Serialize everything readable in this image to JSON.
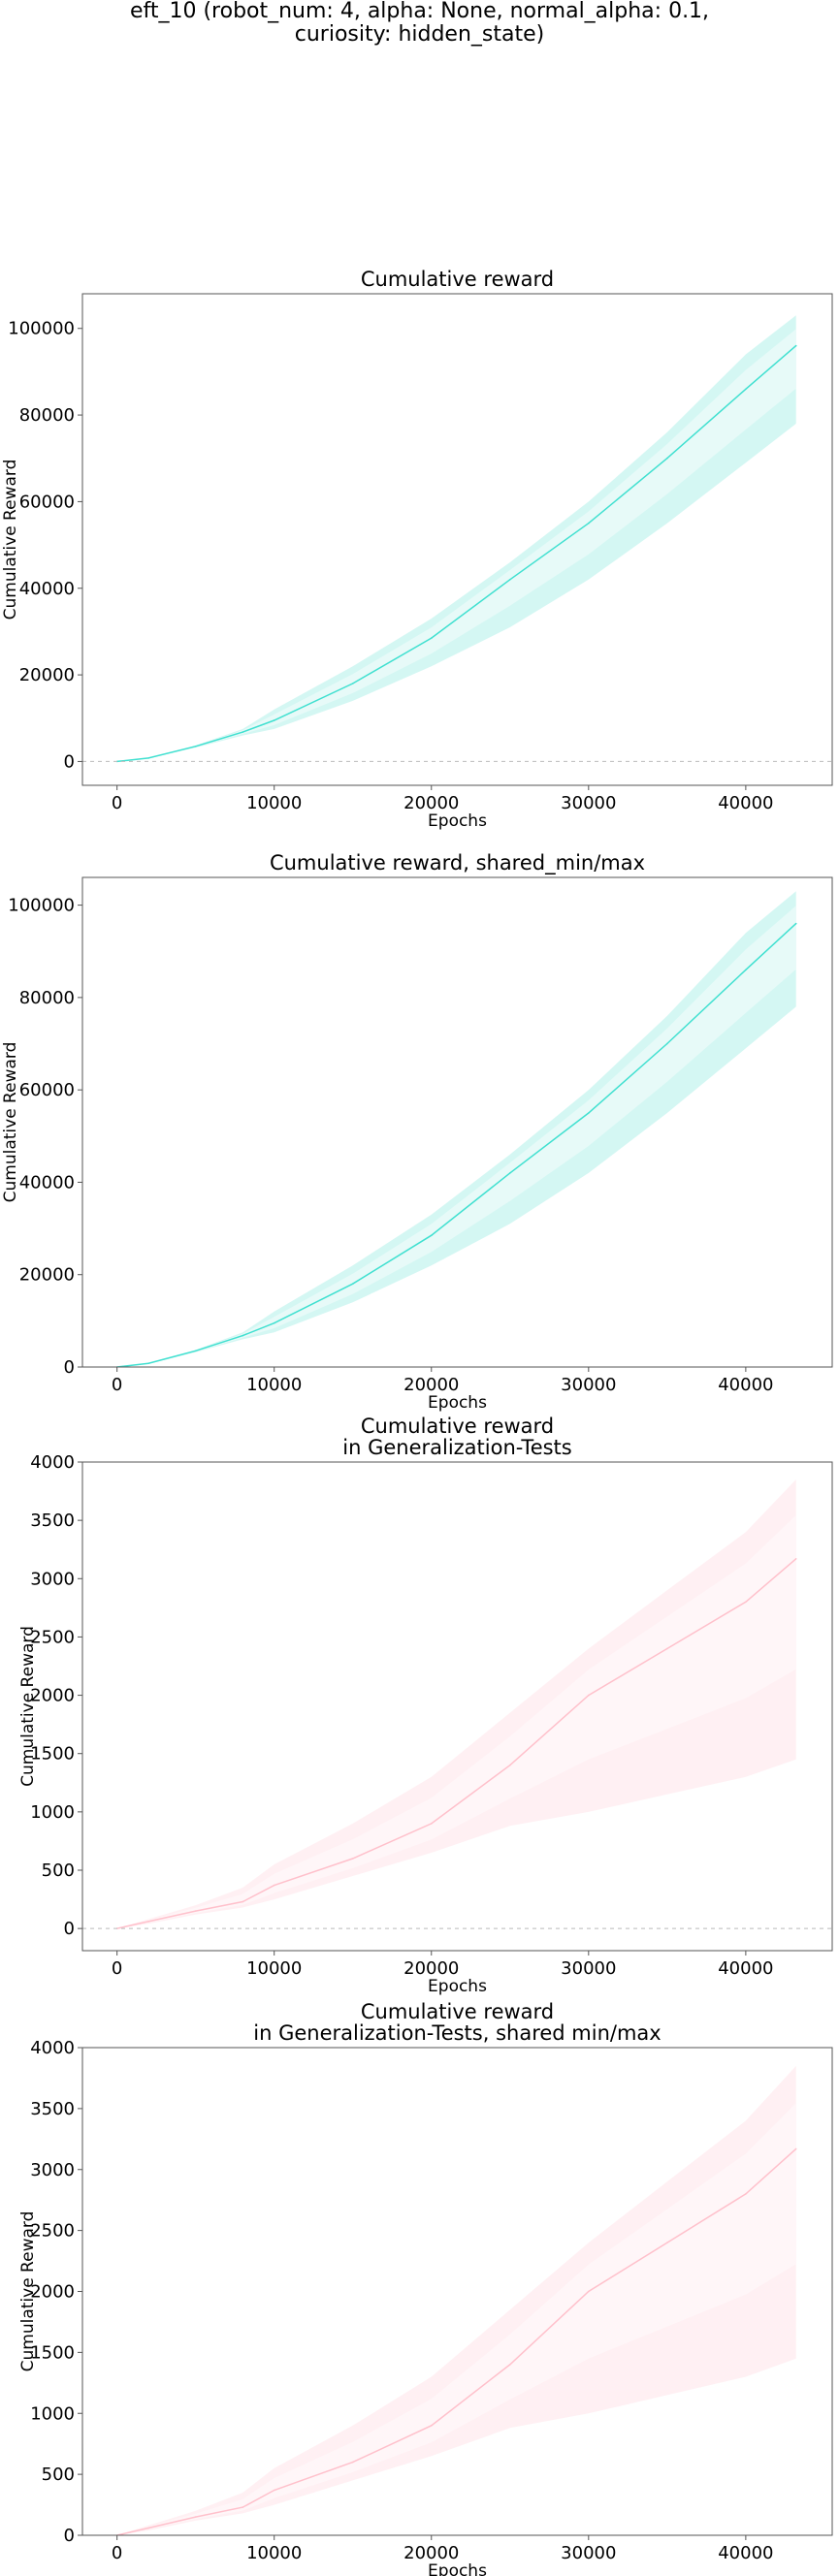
{
  "suptitle_lines": [
    "eft_10 (robot_num: 4, alpha: None, normal_alpha: 0.1,",
    "curiosity: hidden_state)"
  ],
  "chart_data": [
    {
      "type": "line",
      "title_lines": [
        "Cumulative reward"
      ],
      "xlabel": "Epochs",
      "ylabel": "Cumulative Reward",
      "xlim": [
        -2200,
        45500
      ],
      "ylim": [
        -5500,
        108000
      ],
      "xticks": [
        0,
        10000,
        20000,
        30000,
        40000
      ],
      "yticks": [
        0,
        20000,
        40000,
        60000,
        80000,
        100000
      ],
      "zero_line": true,
      "grid": false,
      "colors": {
        "line": "#40E0D0",
        "band": "#D4F7F3",
        "inner_band": "#E7FAF8"
      },
      "series": [
        {
          "x": [
            0,
            2000,
            5000,
            8000,
            10000,
            15000,
            20000,
            25000,
            30000,
            35000,
            40000,
            43200
          ],
          "mean": [
            0,
            800,
            3500,
            6800,
            9500,
            18000,
            28500,
            42000,
            55000,
            70000,
            86000,
            96000
          ],
          "max": [
            0,
            800,
            3700,
            7500,
            12000,
            22000,
            33000,
            46000,
            60000,
            76000,
            94000,
            103000
          ],
          "min": [
            0,
            700,
            3200,
            6000,
            7500,
            14000,
            22000,
            31000,
            42000,
            55000,
            69000,
            78000
          ]
        }
      ]
    },
    {
      "type": "line",
      "title_lines": [
        "Cumulative reward, shared_min/max"
      ],
      "xlabel": "Epochs",
      "ylabel": "Cumulative Reward",
      "xlim": [
        -2200,
        45500
      ],
      "ylim": [
        0,
        106000
      ],
      "xticks": [
        0,
        10000,
        20000,
        30000,
        40000
      ],
      "yticks": [
        0,
        20000,
        40000,
        60000,
        80000,
        100000
      ],
      "zero_line": false,
      "grid": false,
      "colors": {
        "line": "#40E0D0",
        "band": "#D4F7F3",
        "inner_band": "#E7FAF8"
      },
      "series": [
        {
          "x": [
            0,
            2000,
            5000,
            8000,
            10000,
            15000,
            20000,
            25000,
            30000,
            35000,
            40000,
            43200
          ],
          "mean": [
            0,
            800,
            3500,
            6800,
            9500,
            18000,
            28500,
            42000,
            55000,
            70000,
            86000,
            96000
          ],
          "max": [
            0,
            800,
            3700,
            7500,
            12000,
            22000,
            33000,
            46000,
            60000,
            76000,
            94000,
            103000
          ],
          "min": [
            0,
            700,
            3200,
            6000,
            7500,
            14000,
            22000,
            31000,
            42000,
            55000,
            69000,
            78000
          ]
        }
      ]
    },
    {
      "type": "line",
      "title_lines": [
        "Cumulative reward",
        "in Generalization-Tests"
      ],
      "xlabel": "Epochs",
      "ylabel": "Cumulative Reward",
      "xlim": [
        -2200,
        45500
      ],
      "ylim": [
        -190,
        4000
      ],
      "xticks": [
        0,
        10000,
        20000,
        30000,
        40000
      ],
      "yticks": [
        0,
        500,
        1000,
        1500,
        2000,
        2500,
        3000,
        3500,
        4000
      ],
      "zero_line": true,
      "grid": false,
      "colors": {
        "line": "#FFC0CB",
        "band": "#FFF0F3",
        "inner_band": "#FFF6F8"
      },
      "series": [
        {
          "x": [
            0,
            2000,
            5000,
            8000,
            10000,
            15000,
            20000,
            25000,
            30000,
            35000,
            40000,
            43200
          ],
          "mean": [
            0,
            60,
            150,
            230,
            370,
            600,
            900,
            1400,
            2000,
            2400,
            2800,
            3170
          ],
          "max": [
            0,
            80,
            200,
            350,
            550,
            900,
            1300,
            1850,
            2400,
            2900,
            3400,
            3850
          ],
          "min": [
            0,
            40,
            120,
            180,
            250,
            450,
            650,
            880,
            1000,
            1150,
            1300,
            1450
          ]
        }
      ]
    },
    {
      "type": "line",
      "title_lines": [
        "Cumulative reward",
        "in Generalization-Tests, shared min/max"
      ],
      "xlabel": "Epochs",
      "ylabel": "Cumulative Reward",
      "xlim": [
        -2200,
        45500
      ],
      "ylim": [
        0,
        4000
      ],
      "xticks": [
        0,
        10000,
        20000,
        30000,
        40000
      ],
      "yticks": [
        0,
        500,
        1000,
        1500,
        2000,
        2500,
        3000,
        3500,
        4000
      ],
      "zero_line": false,
      "grid": false,
      "colors": {
        "line": "#FFC0CB",
        "band": "#FFF0F3",
        "inner_band": "#FFF6F8"
      },
      "series": [
        {
          "x": [
            0,
            2000,
            5000,
            8000,
            10000,
            15000,
            20000,
            25000,
            30000,
            35000,
            40000,
            43200
          ],
          "mean": [
            0,
            60,
            150,
            230,
            370,
            600,
            900,
            1400,
            2000,
            2400,
            2800,
            3170
          ],
          "max": [
            0,
            80,
            200,
            350,
            550,
            900,
            1300,
            1850,
            2400,
            2900,
            3400,
            3850
          ],
          "min": [
            0,
            40,
            120,
            180,
            250,
            450,
            650,
            880,
            1000,
            1150,
            1300,
            1450
          ]
        }
      ]
    }
  ]
}
